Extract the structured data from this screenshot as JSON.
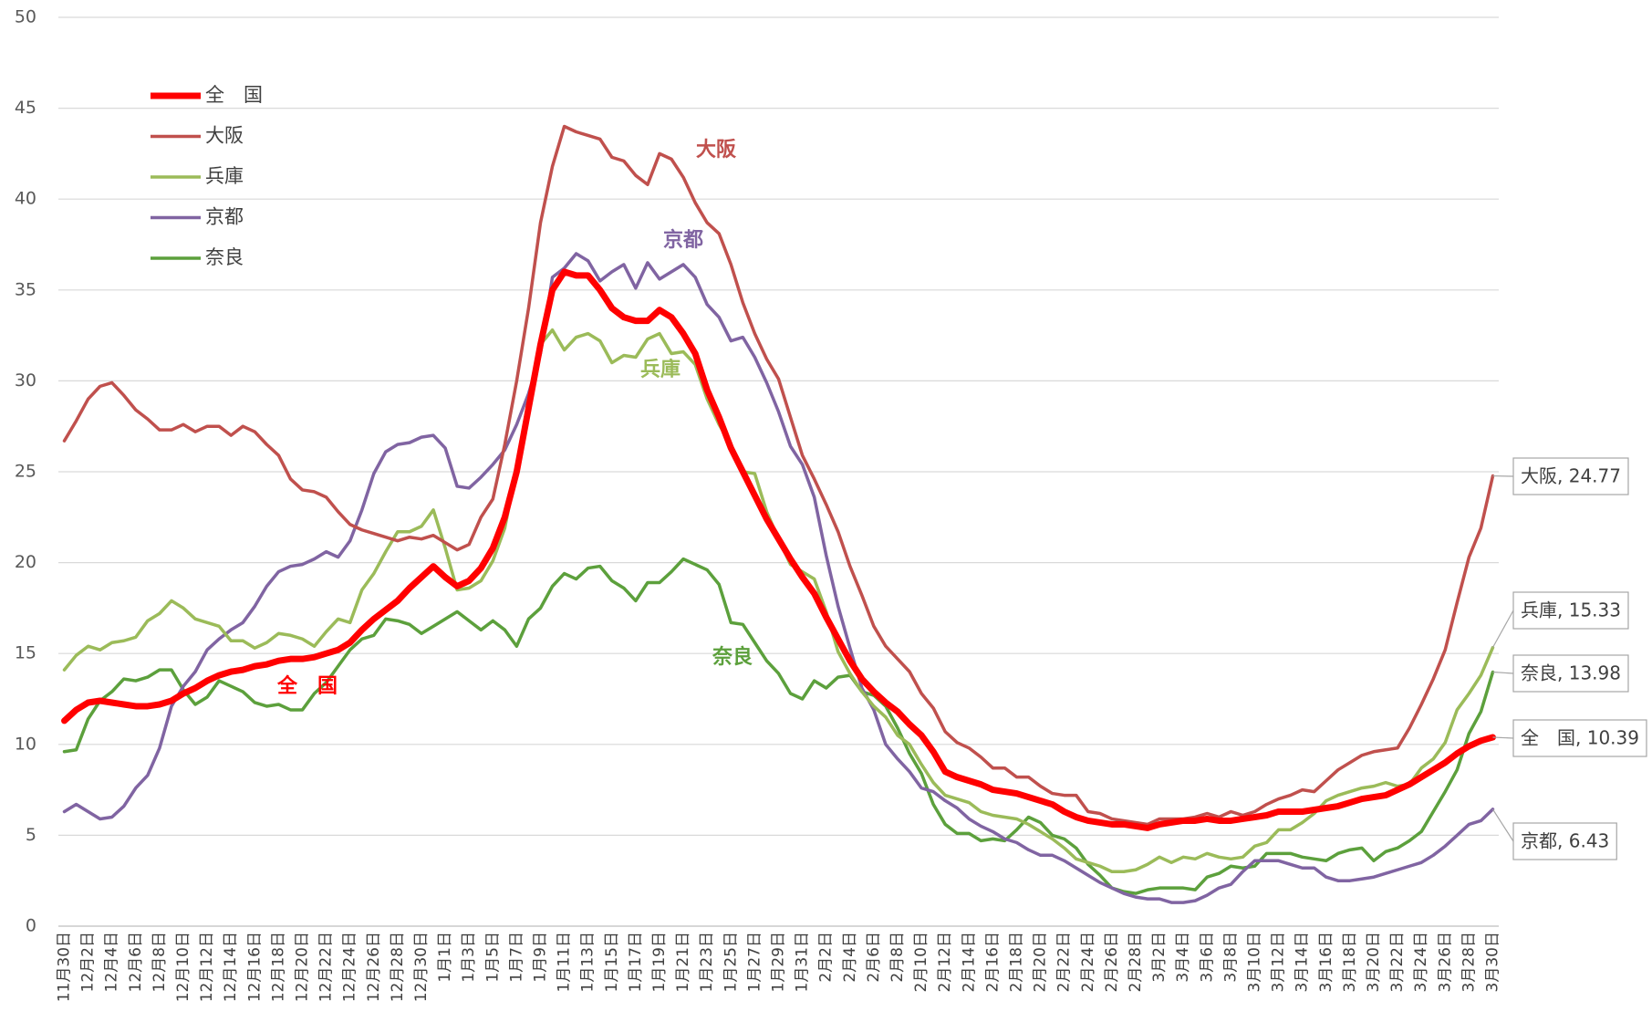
{
  "chart_data": {
    "type": "line",
    "categories": [
      "11月30日",
      null,
      "12月2日",
      null,
      "12月4日",
      null,
      "12月6日",
      null,
      "12月8日",
      null,
      "12月10日",
      null,
      "12月12日",
      null,
      "12月14日",
      null,
      "12月16日",
      null,
      "12月18日",
      null,
      "12月20日",
      null,
      "12月22日",
      null,
      "12月24日",
      null,
      "12月26日",
      null,
      "12月28日",
      null,
      "12月30日",
      null,
      "1月1日",
      null,
      "1月3日",
      null,
      "1月5日",
      null,
      "1月7日",
      null,
      "1月9日",
      null,
      "1月11日",
      null,
      "1月13日",
      null,
      "1月15日",
      null,
      "1月17日",
      null,
      "1月19日",
      null,
      "1月21日",
      null,
      "1月23日",
      null,
      "1月25日",
      null,
      "1月27日",
      null,
      "1月29日",
      null,
      "1月31日",
      null,
      "2月2日",
      null,
      "2月4日",
      null,
      "2月6日",
      null,
      "2月8日",
      null,
      "2月10日",
      null,
      "2月12日",
      null,
      "2月14日",
      null,
      "2月16日",
      null,
      "2月18日",
      null,
      "2月20日",
      null,
      "2月22日",
      null,
      "2月24日",
      null,
      "2月26日",
      null,
      "2月28日",
      null,
      "3月2日",
      null,
      "3月4日",
      null,
      "3月6日",
      null,
      "3月8日",
      null,
      "3月10日",
      null,
      "3月12日",
      null,
      "3月14日",
      null,
      "3月16日",
      null,
      "3月18日",
      null,
      "3月20日",
      null,
      "3月22日",
      null,
      "3月24日",
      null,
      "3月26日",
      null,
      "3月28日",
      null,
      "3月30日"
    ],
    "series": [
      {
        "name": "全　国",
        "color": "#ff0000",
        "width": 7,
        "end_label": "全　国, 10.39",
        "values": [
          11.3,
          11.9,
          12.3,
          12.4,
          12.3,
          12.2,
          12.1,
          12.1,
          12.2,
          12.4,
          12.8,
          13.1,
          13.5,
          13.8,
          14.0,
          14.1,
          14.3,
          14.4,
          14.6,
          14.7,
          14.7,
          14.8,
          15.0,
          15.2,
          15.6,
          16.3,
          16.9,
          17.4,
          17.9,
          18.6,
          19.2,
          19.8,
          19.2,
          18.7,
          19.0,
          19.7,
          20.8,
          22.5,
          25.0,
          28.5,
          32.0,
          35.0,
          36.0,
          35.8,
          35.8,
          35.0,
          34.0,
          33.5,
          33.3,
          33.3,
          33.9,
          33.5,
          32.6,
          31.5,
          29.5,
          28.0,
          26.3,
          25.0,
          23.7,
          22.4,
          21.3,
          20.2,
          19.2,
          18.3,
          17.0,
          15.8,
          14.6,
          13.6,
          12.9,
          12.3,
          11.8,
          11.1,
          10.5,
          9.6,
          8.5,
          8.2,
          8.0,
          7.8,
          7.5,
          7.4,
          7.3,
          7.1,
          6.9,
          6.7,
          6.3,
          6.0,
          5.8,
          5.7,
          5.6,
          5.6,
          5.5,
          5.4,
          5.6,
          5.7,
          5.8,
          5.8,
          5.9,
          5.8,
          5.8,
          5.9,
          6.0,
          6.1,
          6.3,
          6.3,
          6.3,
          6.4,
          6.5,
          6.6,
          6.8,
          7.0,
          7.1,
          7.2,
          7.5,
          7.8,
          8.2,
          8.6,
          9.0,
          9.5,
          9.9,
          10.2,
          10.39
        ]
      },
      {
        "name": "大阪",
        "color": "#c0504d",
        "width": 3.5,
        "end_label": "大阪, 24.77",
        "values": [
          26.7,
          27.8,
          29.0,
          29.7,
          29.9,
          29.2,
          28.4,
          27.9,
          27.3,
          27.3,
          27.6,
          27.2,
          27.5,
          27.5,
          27.0,
          27.5,
          27.2,
          26.5,
          25.9,
          24.6,
          24.0,
          23.9,
          23.6,
          22.8,
          22.1,
          21.8,
          21.6,
          21.4,
          21.2,
          21.4,
          21.3,
          21.5,
          21.1,
          20.7,
          21.0,
          22.5,
          23.5,
          26.5,
          30.0,
          34.0,
          38.7,
          41.8,
          44.0,
          43.7,
          43.5,
          43.3,
          42.3,
          42.1,
          41.3,
          40.8,
          42.5,
          42.2,
          41.2,
          39.8,
          38.7,
          38.1,
          36.4,
          34.3,
          32.6,
          31.2,
          30.1,
          28.0,
          25.9,
          24.6,
          23.2,
          21.7,
          19.8,
          18.2,
          16.5,
          15.4,
          14.7,
          14.0,
          12.8,
          12.0,
          10.7,
          10.1,
          9.8,
          9.3,
          8.7,
          8.7,
          8.2,
          8.2,
          7.7,
          7.3,
          7.2,
          7.2,
          6.3,
          6.2,
          5.9,
          5.8,
          5.7,
          5.6,
          5.9,
          5.9,
          5.9,
          6.0,
          6.2,
          6.0,
          6.3,
          6.1,
          6.3,
          6.7,
          7.0,
          7.2,
          7.5,
          7.4,
          8.0,
          8.6,
          9.0,
          9.4,
          9.6,
          9.7,
          9.8,
          10.9,
          12.2,
          13.6,
          15.2,
          17.8,
          20.3,
          21.9,
          24.77
        ]
      },
      {
        "name": "兵庫",
        "color": "#9bbb59",
        "width": 3.5,
        "end_label": "兵庫, 15.33",
        "values": [
          14.1,
          14.9,
          15.4,
          15.2,
          15.6,
          15.7,
          15.9,
          16.8,
          17.2,
          17.9,
          17.5,
          16.9,
          16.7,
          16.5,
          15.7,
          15.7,
          15.3,
          15.6,
          16.1,
          16.0,
          15.8,
          15.4,
          16.2,
          16.9,
          16.7,
          18.5,
          19.4,
          20.6,
          21.7,
          21.7,
          22.0,
          22.9,
          20.8,
          18.5,
          18.6,
          19.0,
          20.1,
          21.9,
          25.2,
          29.0,
          32.0,
          32.8,
          31.7,
          32.4,
          32.6,
          32.2,
          31.0,
          31.4,
          31.3,
          32.3,
          32.6,
          31.5,
          31.6,
          30.9,
          29.0,
          27.6,
          26.5,
          25.0,
          24.9,
          22.8,
          21.3,
          19.9,
          19.5,
          19.1,
          17.3,
          15.1,
          13.9,
          12.9,
          12.1,
          11.5,
          10.5,
          10.0,
          8.9,
          7.9,
          7.2,
          7.0,
          6.8,
          6.3,
          6.1,
          6.0,
          5.9,
          5.6,
          5.2,
          4.8,
          4.3,
          3.7,
          3.5,
          3.3,
          3.0,
          3.0,
          3.1,
          3.4,
          3.8,
          3.5,
          3.8,
          3.7,
          4.0,
          3.8,
          3.7,
          3.8,
          4.4,
          4.6,
          5.3,
          5.3,
          5.7,
          6.2,
          6.9,
          7.2,
          7.4,
          7.6,
          7.7,
          7.9,
          7.7,
          7.8,
          8.7,
          9.2,
          10.1,
          11.9,
          12.8,
          13.8,
          15.33
        ]
      },
      {
        "name": "京都",
        "color": "#8064a2",
        "width": 3.5,
        "end_label": "京都, 6.43",
        "values": [
          6.3,
          6.7,
          6.3,
          5.9,
          6.0,
          6.6,
          7.6,
          8.3,
          9.8,
          12.1,
          13.2,
          14.0,
          15.2,
          15.8,
          16.3,
          16.7,
          17.6,
          18.7,
          19.5,
          19.8,
          19.9,
          20.2,
          20.6,
          20.3,
          21.2,
          22.9,
          24.9,
          26.1,
          26.5,
          26.6,
          26.9,
          27.0,
          26.3,
          24.2,
          24.1,
          24.7,
          25.4,
          26.2,
          27.6,
          29.3,
          31.5,
          35.7,
          36.2,
          37.0,
          36.6,
          35.5,
          36.0,
          36.4,
          35.1,
          36.5,
          35.6,
          36.0,
          36.4,
          35.7,
          34.2,
          33.5,
          32.2,
          32.4,
          31.3,
          29.9,
          28.3,
          26.4,
          25.4,
          23.6,
          20.4,
          17.6,
          15.3,
          13.1,
          11.9,
          10.0,
          9.2,
          8.5,
          7.6,
          7.4,
          6.9,
          6.5,
          5.9,
          5.5,
          5.2,
          4.8,
          4.6,
          4.2,
          3.9,
          3.9,
          3.6,
          3.2,
          2.8,
          2.4,
          2.1,
          1.8,
          1.6,
          1.5,
          1.5,
          1.3,
          1.3,
          1.4,
          1.7,
          2.1,
          2.3,
          3.0,
          3.6,
          3.6,
          3.6,
          3.4,
          3.2,
          3.2,
          2.7,
          2.5,
          2.5,
          2.6,
          2.7,
          2.9,
          3.1,
          3.3,
          3.5,
          3.9,
          4.4,
          5.0,
          5.6,
          5.8,
          6.43
        ]
      },
      {
        "name": "奈良",
        "color": "#5ca03c",
        "width": 3.5,
        "end_label": "奈良, 13.98",
        "values": [
          9.6,
          9.7,
          11.4,
          12.4,
          12.9,
          13.6,
          13.5,
          13.7,
          14.1,
          14.1,
          13.0,
          12.2,
          12.6,
          13.5,
          13.2,
          12.9,
          12.3,
          12.1,
          12.2,
          11.9,
          11.9,
          12.8,
          13.4,
          14.3,
          15.2,
          15.8,
          16.0,
          16.9,
          16.8,
          16.6,
          16.1,
          16.5,
          16.9,
          17.3,
          16.8,
          16.3,
          16.8,
          16.3,
          15.4,
          16.9,
          17.5,
          18.7,
          19.4,
          19.1,
          19.7,
          19.8,
          19.0,
          18.6,
          17.9,
          18.9,
          18.9,
          19.5,
          20.2,
          19.9,
          19.6,
          18.8,
          16.7,
          16.6,
          15.6,
          14.6,
          13.9,
          12.8,
          12.5,
          13.5,
          13.1,
          13.7,
          13.8,
          12.9,
          12.7,
          12.1,
          10.9,
          9.5,
          8.4,
          6.7,
          5.6,
          5.1,
          5.1,
          4.7,
          4.8,
          4.7,
          5.3,
          6.0,
          5.7,
          5.0,
          4.8,
          4.3,
          3.4,
          2.8,
          2.1,
          1.9,
          1.8,
          2.0,
          2.1,
          2.1,
          2.1,
          2.0,
          2.7,
          2.9,
          3.3,
          3.2,
          3.3,
          4.0,
          4.0,
          4.0,
          3.8,
          3.7,
          3.6,
          4.0,
          4.2,
          4.3,
          3.6,
          4.1,
          4.3,
          4.7,
          5.2,
          6.3,
          7.4,
          8.6,
          10.6,
          11.8,
          13.98
        ]
      }
    ],
    "ylim": [
      0,
      50
    ],
    "yticks": [
      0,
      5,
      10,
      15,
      20,
      25,
      30,
      35,
      40,
      45,
      50
    ],
    "grid": true,
    "legend": "top-left"
  }
}
